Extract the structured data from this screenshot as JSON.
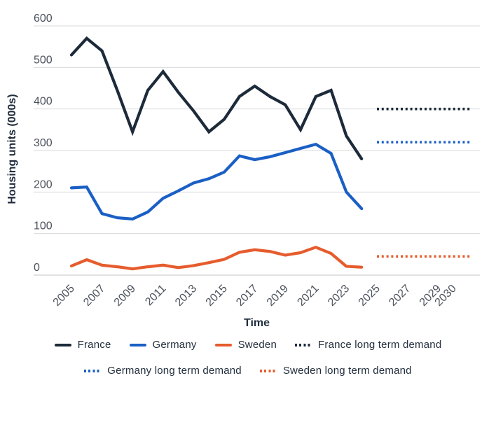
{
  "chart_data": {
    "type": "line",
    "title": "",
    "xlabel": "Time",
    "ylabel": "Housing units (000s)",
    "ylim": [
      0,
      600
    ],
    "yticks": [
      0,
      100,
      200,
      300,
      400,
      500,
      600
    ],
    "xticks": [
      2005,
      2007,
      2009,
      2011,
      2013,
      2015,
      2017,
      2019,
      2021,
      2023,
      2025,
      2027,
      2029,
      2030
    ],
    "grid": "horizontal",
    "legend_position": "bottom",
    "x": [
      2005,
      2006,
      2007,
      2008,
      2009,
      2010,
      2011,
      2012,
      2013,
      2014,
      2015,
      2016,
      2017,
      2018,
      2019,
      2020,
      2021,
      2022,
      2023,
      2024
    ],
    "series": [
      {
        "name": "France",
        "style": "solid",
        "color": "#1d2a39",
        "values": [
          530,
          570,
          540,
          445,
          345,
          445,
          490,
          440,
          395,
          345,
          375,
          430,
          455,
          430,
          410,
          350,
          430,
          445,
          335,
          280
        ]
      },
      {
        "name": "Germany",
        "style": "solid",
        "color": "#1a5fc5",
        "values": [
          210,
          212,
          148,
          138,
          135,
          152,
          185,
          203,
          222,
          232,
          248,
          287,
          278,
          285,
          295,
          305,
          315,
          293,
          200,
          160
        ]
      },
      {
        "name": "Sweden",
        "style": "solid",
        "color": "#e65c2d",
        "values": [
          22,
          37,
          24,
          20,
          15,
          20,
          24,
          18,
          23,
          30,
          38,
          55,
          61,
          57,
          48,
          54,
          67,
          52,
          21,
          19
        ]
      },
      {
        "name": "France long term demand",
        "style": "dotted",
        "color": "#1d2a39",
        "value": 400,
        "x_range": [
          2025,
          2030
        ]
      },
      {
        "name": "Germany long term demand",
        "style": "dotted",
        "color": "#1a5fc5",
        "value": 320,
        "x_range": [
          2025,
          2030
        ]
      },
      {
        "name": "Sweden long term demand",
        "style": "dotted",
        "color": "#e65c2d",
        "value": 45,
        "x_range": [
          2025,
          2030
        ]
      }
    ],
    "colors": {
      "gridline": "#d8dadb",
      "axis_line": "#c2c6c9",
      "tick_text": "#4b525c",
      "title_text": "#222e3d"
    }
  }
}
